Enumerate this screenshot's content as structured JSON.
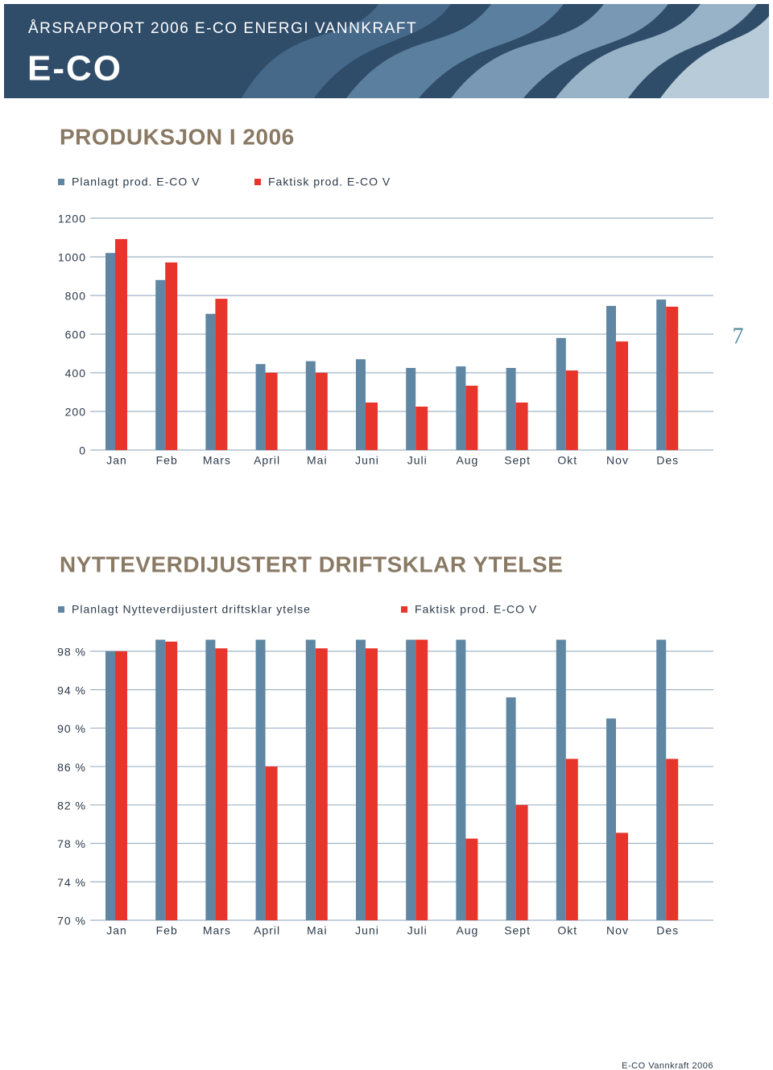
{
  "header": {
    "title": "ÅRSRAPPORT 2006 E-CO ENERGI VANNKRAFT",
    "logo": "E-CO"
  },
  "page_number": "7",
  "footer": "E-CO Vannkraft 2006",
  "chart_data": [
    {
      "type": "bar",
      "title": "PRODUKSJON I 2006",
      "categories": [
        "Jan",
        "Feb",
        "Mars",
        "April",
        "Mai",
        "Juni",
        "Juli",
        "Aug",
        "Sept",
        "Okt",
        "Nov",
        "Des"
      ],
      "series": [
        {
          "name": "Planlagt prod. E-CO V",
          "color": "#5f87a3",
          "values": [
            1020,
            880,
            705,
            445,
            460,
            470,
            425,
            433,
            425,
            580,
            746,
            779
          ]
        },
        {
          "name": "Faktisk prod. E-CO V",
          "color": "#e8352c",
          "values": [
            1092,
            971,
            783,
            400,
            400,
            246,
            225,
            333,
            246,
            412,
            562,
            742
          ]
        }
      ],
      "ylim": [
        0,
        1200
      ],
      "yticks": [
        0,
        200,
        400,
        600,
        800,
        1000,
        1200
      ],
      "grid": true
    },
    {
      "type": "bar",
      "title": "NYTTEVERDIJUSTERT DRIFTSKLAR YTELSE",
      "categories": [
        "Jan",
        "Feb",
        "Mars",
        "April",
        "Mai",
        "Juni",
        "Juli",
        "Aug",
        "Sept",
        "Okt",
        "Nov",
        "Des"
      ],
      "series": [
        {
          "name": "Planlagt Nytteverdijustert driftsklar ytelse",
          "color": "#5f87a3",
          "values": [
            98,
            99.2,
            99.2,
            99.2,
            99.2,
            99.2,
            99.2,
            99.2,
            93.2,
            99.2,
            91,
            99.2
          ]
        },
        {
          "name": "Faktisk prod. E-CO V",
          "color": "#e8352c",
          "values": [
            98,
            99,
            98.3,
            86,
            98.3,
            98.3,
            99.2,
            78.5,
            82,
            86.8,
            79.1,
            86.8
          ]
        }
      ],
      "ylim": [
        70,
        100
      ],
      "yticks": [
        {
          "value": 70,
          "label": "70 %"
        },
        {
          "value": 74,
          "label": "74 %"
        },
        {
          "value": 78,
          "label": "78 %"
        },
        {
          "value": 82,
          "label": "82 %"
        },
        {
          "value": 86,
          "label": "86 %"
        },
        {
          "value": 90,
          "label": "90 %"
        },
        {
          "value": 94,
          "label": "94 %"
        },
        {
          "value": 98,
          "label": "98 %"
        }
      ],
      "grid": true
    }
  ]
}
